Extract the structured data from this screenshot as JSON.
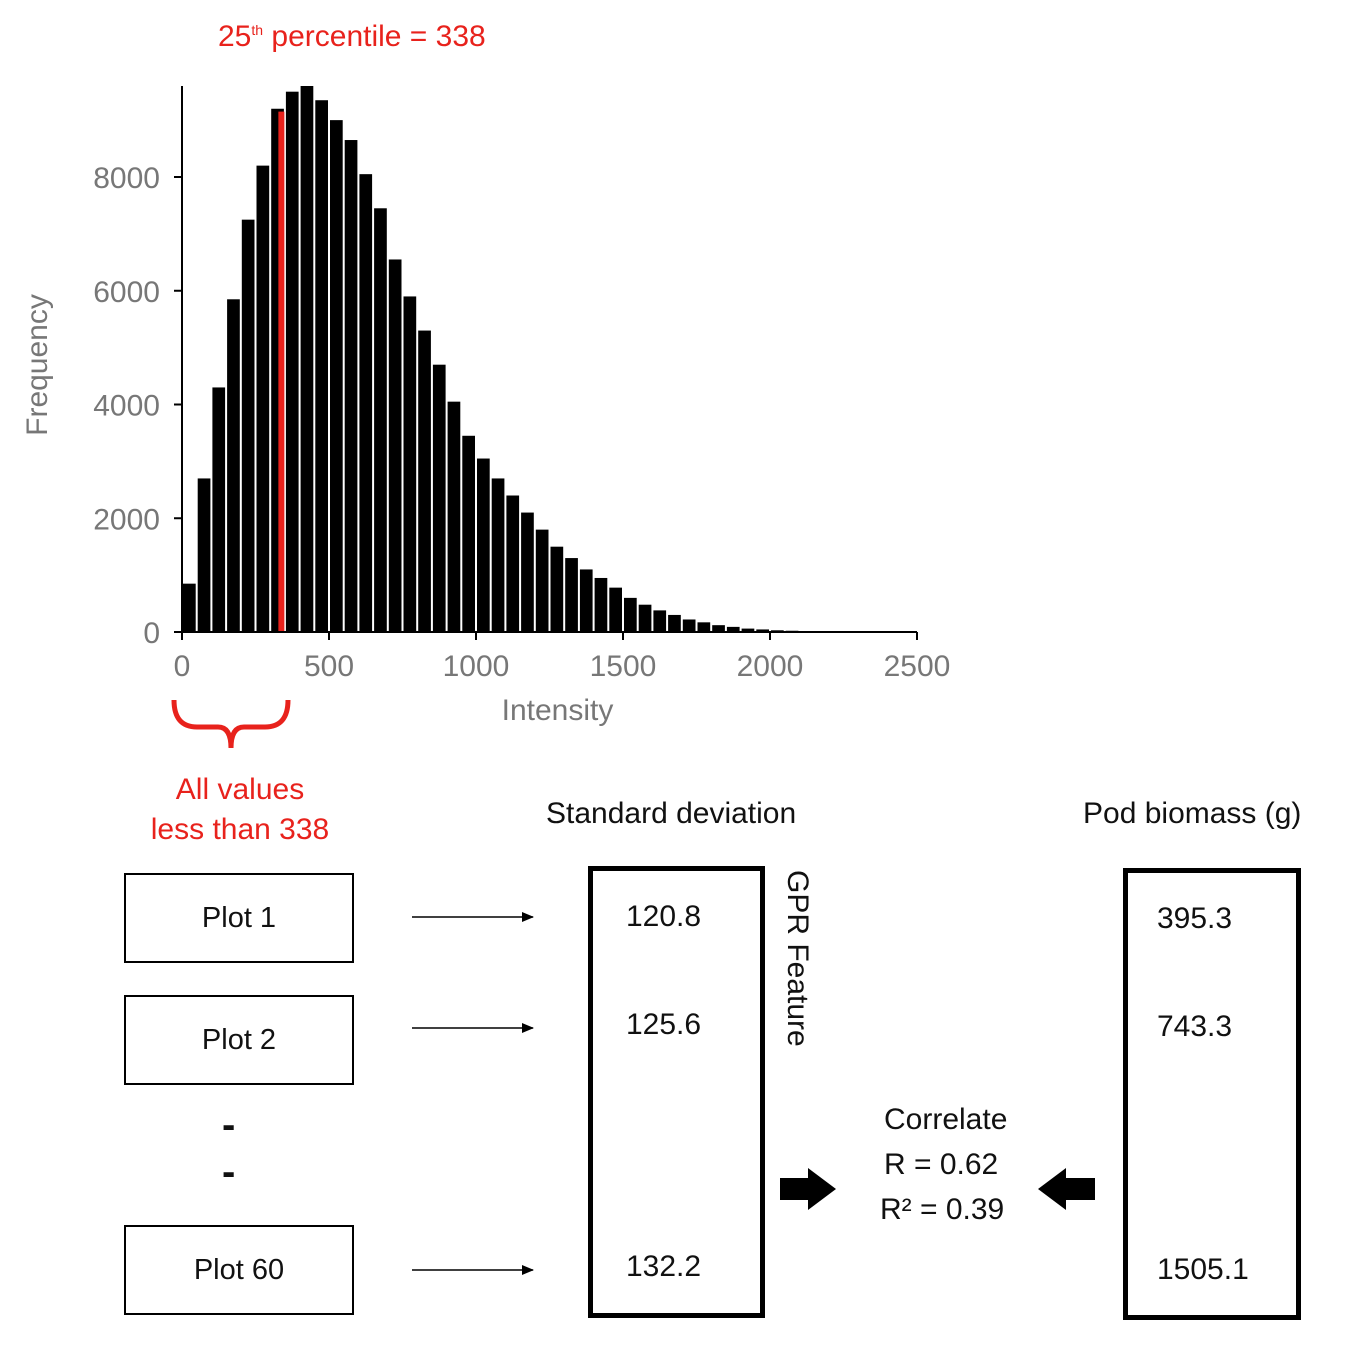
{
  "chart_data": {
    "type": "histogram",
    "title": "25th percentile = 338",
    "xlabel": "Intensity",
    "ylabel": "Frequency",
    "xlim": [
      0,
      2500
    ],
    "ylim": [
      0,
      9600
    ],
    "xticks": [
      "0",
      "500",
      "1000",
      "1500",
      "2000",
      "2500"
    ],
    "yticks": [
      "0",
      "2000",
      "4000",
      "6000",
      "8000"
    ],
    "bin_width": 50,
    "bin_starts": [
      0,
      50,
      100,
      150,
      200,
      250,
      300,
      350,
      400,
      450,
      500,
      550,
      600,
      650,
      700,
      750,
      800,
      850,
      900,
      950,
      1000,
      1050,
      1100,
      1150,
      1200,
      1250,
      1300,
      1350,
      1400,
      1450,
      1500,
      1550,
      1600,
      1650,
      1700,
      1750,
      1800,
      1850,
      1900,
      1950,
      2000,
      2050,
      2100,
      2150,
      2200,
      2250,
      2300,
      2350,
      2400,
      2450
    ],
    "values": [
      850,
      2700,
      4300,
      5850,
      7250,
      8200,
      9200,
      9500,
      9600,
      9350,
      9000,
      8650,
      8050,
      7450,
      6550,
      5900,
      5300,
      4700,
      4050,
      3450,
      3050,
      2700,
      2400,
      2100,
      1800,
      1500,
      1300,
      1100,
      950,
      780,
      600,
      480,
      380,
      300,
      220,
      170,
      120,
      90,
      60,
      45,
      30,
      22,
      15,
      10,
      8,
      6,
      4,
      3,
      2,
      1
    ],
    "threshold": 338,
    "threshold_color": "#e8221c",
    "bar_color": "#000000"
  },
  "annotation": {
    "percentile_base": "25",
    "percentile_sup": "th",
    "percentile_rest": " percentile = 338",
    "brace_line1": "All values",
    "brace_line2": "less than 338"
  },
  "plots": [
    {
      "label": "Plot 1"
    },
    {
      "label": "Plot 2"
    },
    {
      "label": "Plot 60"
    }
  ],
  "ellipsis": [
    "-",
    "-"
  ],
  "std_header": "Standard deviation",
  "std_values": [
    "120.8",
    "125.6",
    "132.2"
  ],
  "gpr_label": "GPR Feature",
  "biomass_header": "Pod biomass (g)",
  "biomass_values": [
    "395.3",
    "743.3",
    "1505.1"
  ],
  "correlate": {
    "title": "Correlate",
    "r": "R = 0.62",
    "r2": "R² = 0.39"
  },
  "colors": {
    "accent": "#e8221c",
    "axis_text": "#777777"
  }
}
